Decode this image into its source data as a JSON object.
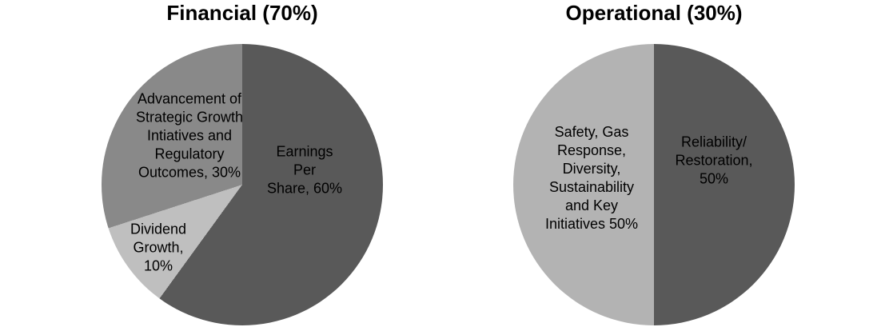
{
  "page": {
    "background_color": "#ffffff",
    "text_color": "#000000"
  },
  "chart_data": [
    {
      "type": "pie",
      "title": "Financial (70%)",
      "start_angle_deg": 0,
      "direction": "clockwise",
      "legend": "none",
      "slices": [
        {
          "label": "Earnings Per Share",
          "value": 60,
          "unit": "%",
          "color": "#595959",
          "display": "Earnings Per\nShare, 60%"
        },
        {
          "label": "Dividend Growth",
          "value": 10,
          "unit": "%",
          "color": "#bfbfbf",
          "display": "Dividend\nGrowth,\n10%"
        },
        {
          "label": "Advancement of Strategic Growth Intiatives and Regulatory Outcomes",
          "value": 30,
          "unit": "%",
          "color": "#898989",
          "display": "Advancement of\nStrategic Growth\nIntiatives and\nRegulatory\nOutcomes, 30%"
        }
      ]
    },
    {
      "type": "pie",
      "title": "Operational (30%)",
      "start_angle_deg": 0,
      "direction": "clockwise",
      "legend": "none",
      "slices": [
        {
          "label": "Reliability/Restoration",
          "value": 50,
          "unit": "%",
          "color": "#595959",
          "display": "Reliability/\nRestoration, 50%"
        },
        {
          "label": "Safety, Gas Response, Diversity, Sustainability and Key Initiatives",
          "value": 50,
          "unit": "%",
          "color": "#b3b3b3",
          "display": "Safety, Gas\nResponse,\nDiversity,\nSustainability\nand Key\nInitiatives 50%"
        }
      ]
    }
  ]
}
